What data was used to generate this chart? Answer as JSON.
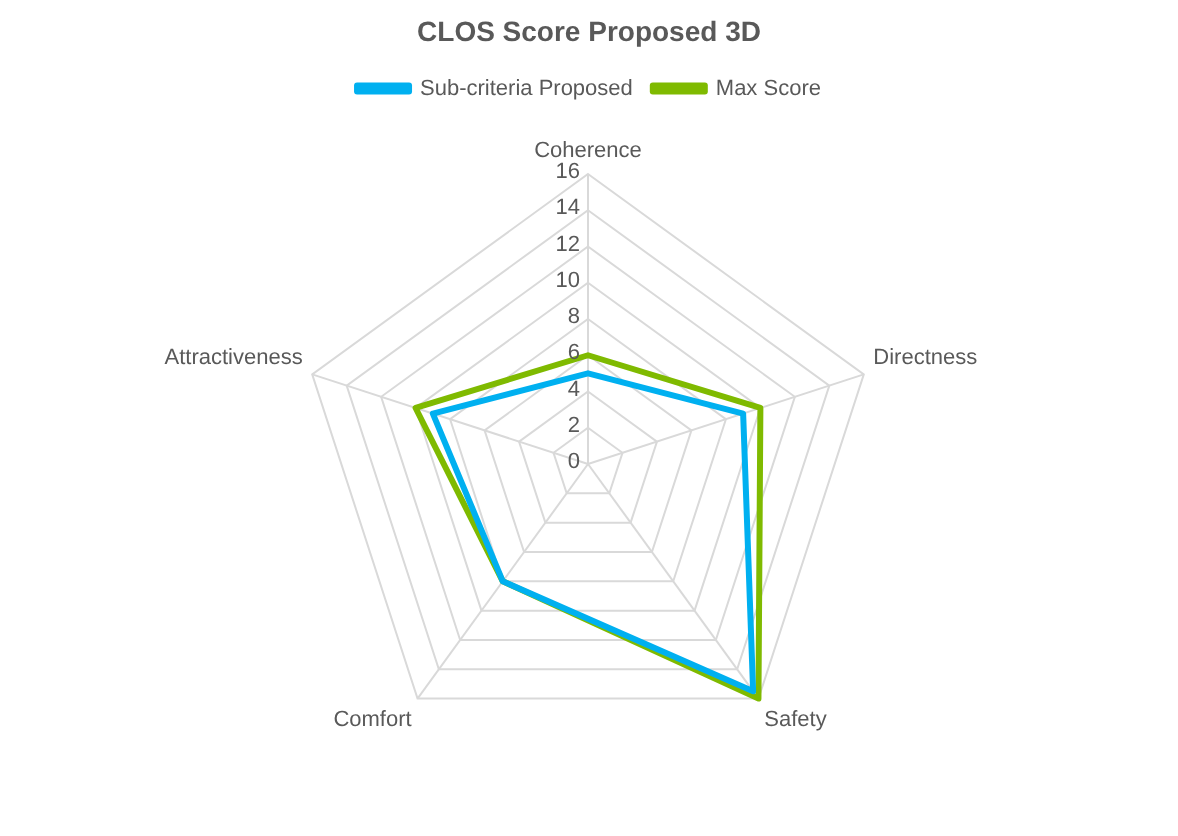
{
  "chart_data": {
    "type": "radar",
    "title": "CLOS Score Proposed 3D",
    "categories": [
      "Coherence",
      "Directness",
      "Safety",
      "Comfort",
      "Attractiveness"
    ],
    "series": [
      {
        "name": "Sub-criteria Proposed",
        "color": "#00b0f0",
        "values": [
          5,
          9,
          15.5,
          8,
          9
        ]
      },
      {
        "name": "Max Score",
        "color": "#7fba00",
        "values": [
          6,
          10,
          16,
          8,
          10
        ]
      }
    ],
    "ylim": [
      0,
      16
    ],
    "yticks": [
      0,
      2,
      4,
      6,
      8,
      10,
      12,
      14,
      16
    ],
    "grid": true,
    "legend": "top",
    "marker": "none"
  }
}
